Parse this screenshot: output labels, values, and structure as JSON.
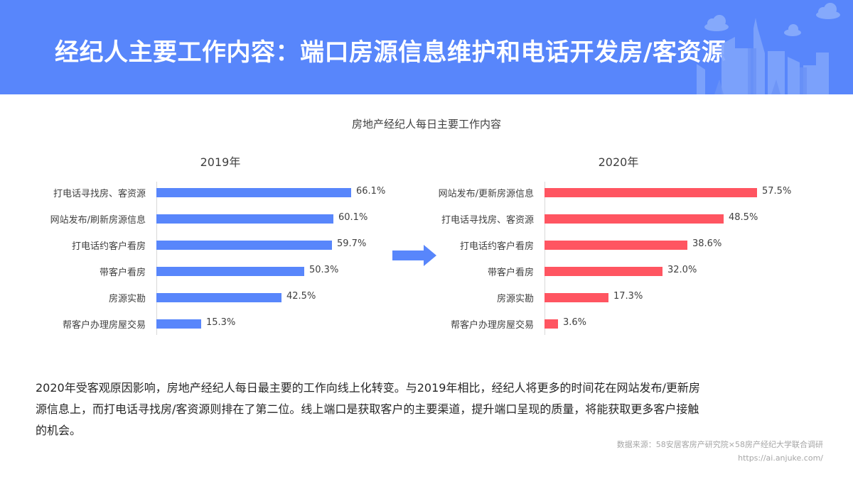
{
  "header": {
    "title": "经纪人主要工作内容：端口房源信息维护和电话开发房/客资源",
    "bg_color": "#5886fb"
  },
  "chart_title": "房地产经纪人每日主要工作内容",
  "panels": [
    {
      "year": "2019年",
      "bar_color": "#5886fb",
      "items": [
        {
          "label": "打电话寻找房、客资源",
          "value": 66.1,
          "display": "66.1%"
        },
        {
          "label": "网站发布/刷新房源信息",
          "value": 60.1,
          "display": "60.1%"
        },
        {
          "label": "打电话约客户看房",
          "value": 59.7,
          "display": "59.7%"
        },
        {
          "label": "带客户看房",
          "value": 50.3,
          "display": "50.3%"
        },
        {
          "label": "房源实勘",
          "value": 42.5,
          "display": "42.5%"
        },
        {
          "label": "帮客户办理房屋交易",
          "value": 15.3,
          "display": "15.3%"
        }
      ]
    },
    {
      "year": "2020年",
      "bar_color": "#ff5561",
      "items": [
        {
          "label": "网站发布/更新房源信息",
          "value": 57.5,
          "display": "57.5%"
        },
        {
          "label": "打电话寻找房、客资源",
          "value": 48.5,
          "display": "48.5%"
        },
        {
          "label": "打电话约客户看房",
          "value": 38.6,
          "display": "38.6%"
        },
        {
          "label": "带客户看房",
          "value": 32.0,
          "display": "32.0%"
        },
        {
          "label": "房源实勘",
          "value": 17.3,
          "display": "17.3%"
        },
        {
          "label": "帮客户办理房屋交易",
          "value": 3.6,
          "display": "3.6%"
        }
      ]
    }
  ],
  "arrow_icon": "arrow-right-icon",
  "summary": {
    "lines": [
      "2020年受客观原因影响，房地产经纪人每日最主要的工作向线上化转变。与2019年相比，经纪人将更多的时间花在网站发布/更新房",
      "源信息上，而打电话寻找房/客资源则排在了第二位。线上端口是获取客户的主要渠道，提升端口呈现的质量，将能获取更多客户接触",
      "的机会。"
    ]
  },
  "source": {
    "line1": "数据来源：58安居客房产研究院×58房产经纪大学联合调研",
    "line2": "https://ai.anjuke.com/"
  },
  "chart_data": {
    "type": "bar",
    "orientation": "horizontal",
    "title": "房地产经纪人每日主要工作内容",
    "subcharts": [
      {
        "title": "2019年",
        "categories": [
          "打电话寻找房、客资源",
          "网站发布/刷新房源信息",
          "打电话约客户看房",
          "带客户看房",
          "房源实勘",
          "帮客户办理房屋交易"
        ],
        "values": [
          66.1,
          60.1,
          59.7,
          50.3,
          42.5,
          15.3
        ],
        "unit": "%",
        "color": "#5886fb"
      },
      {
        "title": "2020年",
        "categories": [
          "网站发布/更新房源信息",
          "打电话寻找房、客资源",
          "打电话约客户看房",
          "带客户看房",
          "房源实勘",
          "帮客户办理房屋交易"
        ],
        "values": [
          57.5,
          48.5,
          38.6,
          32.0,
          17.3,
          3.6
        ],
        "unit": "%",
        "color": "#ff5561"
      }
    ],
    "xlabel": "",
    "ylabel": "",
    "grid": false,
    "legend": "none"
  }
}
